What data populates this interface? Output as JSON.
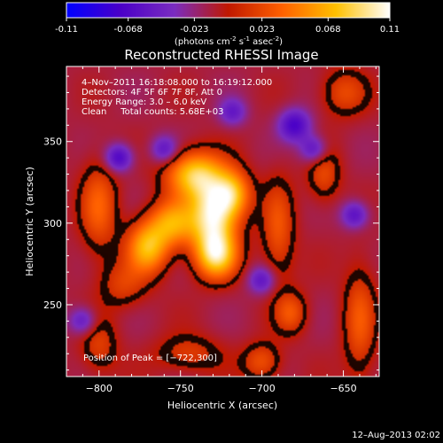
{
  "colorbar": {
    "ticks": [
      "-0.11",
      "-0.068",
      "-0.023",
      "0.023",
      "0.068",
      "0.11"
    ],
    "tick_values": [
      -0.11,
      -0.068,
      -0.023,
      0.023,
      0.068,
      0.11
    ],
    "range": [
      -0.11,
      0.11
    ],
    "unit_main": "(photons cm",
    "unit_sup1": "-2",
    "unit_mid": " s",
    "unit_sup2": "-1",
    "unit_end": " asec",
    "unit_sup3": "-2",
    "unit_close": ")",
    "colormap": [
      "#0000ff",
      "#4a00c8",
      "#7a2cc0",
      "#c01800",
      "#ff6000",
      "#ffc000",
      "#ffffff"
    ]
  },
  "chart_data": {
    "type": "heatmap",
    "title": "Reconstructed RHESSI Image",
    "xlabel": "Heliocentric X (arcsec)",
    "ylabel": "Heliocentric Y (arcsec)",
    "xlim": [
      -820,
      -628
    ],
    "ylim": [
      206,
      396
    ],
    "x_ticks": [
      -800,
      -750,
      -700,
      -650
    ],
    "x_tick_labels": [
      "−800",
      "−750",
      "−700",
      "−650"
    ],
    "y_ticks": [
      250,
      300,
      350
    ],
    "y_tick_labels": [
      "250",
      "300",
      "350"
    ],
    "annotations": [
      "4–Nov–2011 16:18:08.000 to 16:19:12.000",
      "Detectors: 4F 5F 6F 7F 8F, Att 0",
      "Energy Range: 3.0 – 6.0 keV",
      "Clean     Total counts: 5.68E+03"
    ],
    "peak_label": "Position of Peak = [−722,300]",
    "peak": [
      -722,
      300
    ],
    "sources": [
      {
        "x": -742,
        "y": 330,
        "intensity": 0.085,
        "sx": 12,
        "sy": 10
      },
      {
        "x": -730,
        "y": 305,
        "intensity": 0.11,
        "sx": 10,
        "sy": 16
      },
      {
        "x": -718,
        "y": 318,
        "intensity": 0.07,
        "sx": 8,
        "sy": 10
      },
      {
        "x": -770,
        "y": 285,
        "intensity": 0.08,
        "sx": 9,
        "sy": 11
      },
      {
        "x": -755,
        "y": 300,
        "intensity": 0.07,
        "sx": 10,
        "sy": 10
      },
      {
        "x": -728,
        "y": 280,
        "intensity": 0.085,
        "sx": 9,
        "sy": 10
      },
      {
        "x": -800,
        "y": 310,
        "intensity": 0.045,
        "sx": 8,
        "sy": 20
      },
      {
        "x": -690,
        "y": 295,
        "intensity": 0.04,
        "sx": 7,
        "sy": 22
      },
      {
        "x": -682,
        "y": 245,
        "intensity": 0.04,
        "sx": 7,
        "sy": 9
      },
      {
        "x": -785,
        "y": 262,
        "intensity": 0.03,
        "sx": 10,
        "sy": 10
      },
      {
        "x": -640,
        "y": 240,
        "intensity": 0.04,
        "sx": 7,
        "sy": 25
      },
      {
        "x": -662,
        "y": 330,
        "intensity": 0.035,
        "sx": 7,
        "sy": 12
      },
      {
        "x": -650,
        "y": 380,
        "intensity": 0.035,
        "sx": 10,
        "sy": 10
      },
      {
        "x": -800,
        "y": 225,
        "intensity": 0.03,
        "sx": 8,
        "sy": 12
      },
      {
        "x": -745,
        "y": 220,
        "intensity": 0.03,
        "sx": 14,
        "sy": 8
      },
      {
        "x": -700,
        "y": 215,
        "intensity": 0.04,
        "sx": 8,
        "sy": 8
      },
      {
        "x": -680,
        "y": 360,
        "intensity": -0.06,
        "sx": 7,
        "sy": 7
      },
      {
        "x": -668,
        "y": 345,
        "intensity": -0.05,
        "sx": 6,
        "sy": 6
      },
      {
        "x": -788,
        "y": 340,
        "intensity": -0.06,
        "sx": 6,
        "sy": 6
      },
      {
        "x": -760,
        "y": 345,
        "intensity": -0.045,
        "sx": 6,
        "sy": 6
      },
      {
        "x": -700,
        "y": 265,
        "intensity": -0.045,
        "sx": 6,
        "sy": 6
      },
      {
        "x": -810,
        "y": 240,
        "intensity": -0.045,
        "sx": 6,
        "sy": 6
      },
      {
        "x": -643,
        "y": 305,
        "intensity": -0.05,
        "sx": 6,
        "sy": 6
      },
      {
        "x": -718,
        "y": 368,
        "intensity": -0.04,
        "sx": 6,
        "sy": 6
      }
    ]
  },
  "footer": {
    "date": "12–Aug–2013 02:02"
  }
}
